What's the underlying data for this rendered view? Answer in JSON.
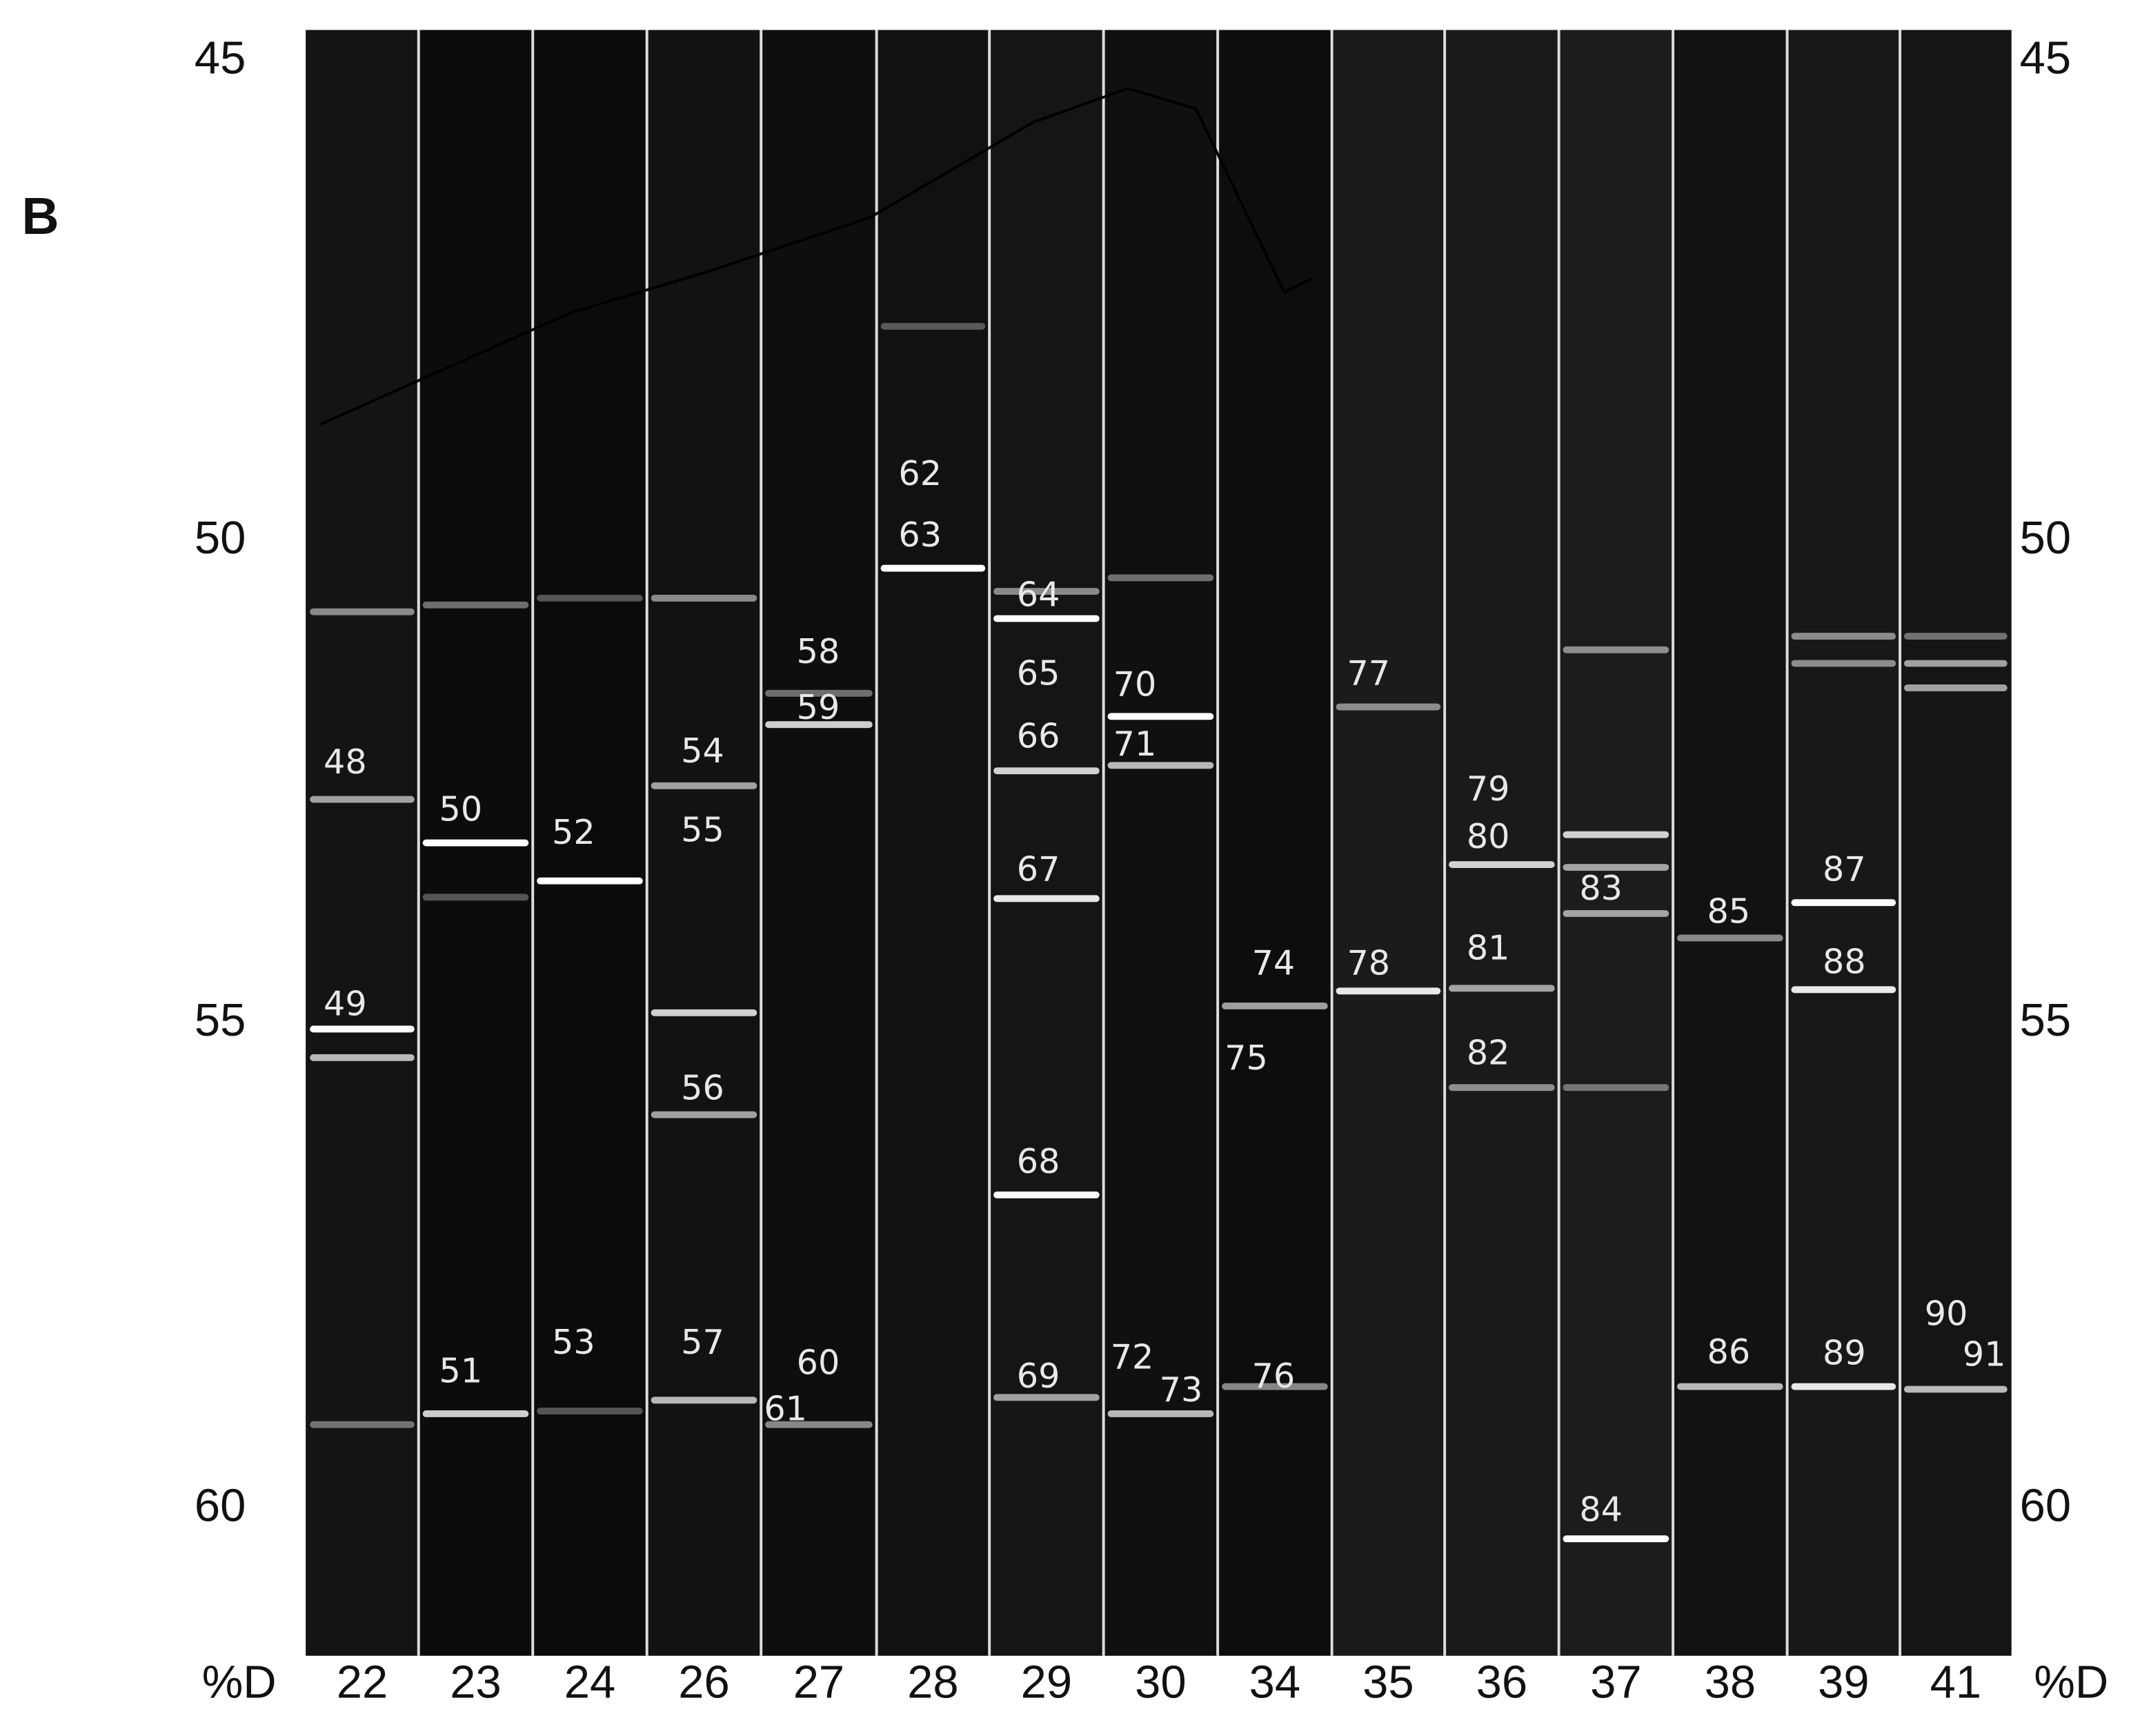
{
  "panel_label": "B",
  "axis_label": "%D",
  "denaturant_ticks": [
    45,
    50,
    55,
    60
  ],
  "lanes": [
    {
      "label": "22",
      "bands": [
        "48",
        "49"
      ]
    },
    {
      "label": "23",
      "bands": [
        "50",
        "51"
      ]
    },
    {
      "label": "24",
      "bands": [
        "52",
        "53"
      ]
    },
    {
      "label": "26",
      "bands": [
        "54",
        "55",
        "56",
        "57"
      ]
    },
    {
      "label": "27",
      "bands": [
        "58",
        "59",
        "60",
        "61"
      ]
    },
    {
      "label": "28",
      "bands": [
        "62",
        "63"
      ]
    },
    {
      "label": "29",
      "bands": [
        "64",
        "65",
        "66",
        "67",
        "68",
        "69"
      ]
    },
    {
      "label": "30",
      "bands": [
        "70",
        "71",
        "72",
        "73"
      ]
    },
    {
      "label": "34",
      "bands": [
        "74",
        "75",
        "76"
      ]
    },
    {
      "label": "35",
      "bands": [
        "77",
        "78"
      ]
    },
    {
      "label": "36",
      "bands": [
        "79",
        "80",
        "81",
        "82"
      ]
    },
    {
      "label": "37",
      "bands": [
        "83",
        "84"
      ]
    },
    {
      "label": "38",
      "bands": [
        "85",
        "86"
      ]
    },
    {
      "label": "39",
      "bands": [
        "87",
        "88",
        "89"
      ]
    },
    {
      "label": "41",
      "bands": [
        "90",
        "91"
      ]
    }
  ]
}
